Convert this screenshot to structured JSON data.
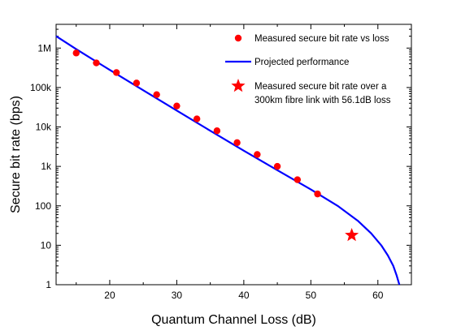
{
  "chart_data": {
    "type": "scatter",
    "xlabel": "Quantum Channel Loss (dB)",
    "ylabel": "Secure bit rate (bps)",
    "xlim": [
      12,
      65
    ],
    "ylim": [
      1,
      4000000
    ],
    "yscale": "log",
    "x_ticks": [
      20,
      30,
      40,
      50,
      60
    ],
    "y_ticks": [
      {
        "value": 1,
        "label": "1"
      },
      {
        "value": 10,
        "label": "10"
      },
      {
        "value": 100,
        "label": "100"
      },
      {
        "value": 1000,
        "label": "1k"
      },
      {
        "value": 10000,
        "label": "10k"
      },
      {
        "value": 100000,
        "label": "100k"
      },
      {
        "value": 1000000,
        "label": "1M"
      }
    ],
    "grid": false,
    "legend_position": "top-right",
    "series": [
      {
        "name": "Measured secure bit rate vs loss",
        "kind": "scatter",
        "marker": "circle",
        "color": "#ff0000",
        "x": [
          15,
          18,
          21,
          24,
          27,
          30,
          33,
          36,
          39,
          42,
          45,
          48,
          51
        ],
        "y": [
          750000,
          420000,
          240000,
          130000,
          66000,
          34000,
          16000,
          8000,
          4000,
          2000,
          1000,
          460,
          200
        ]
      },
      {
        "name": "Projected performance",
        "kind": "line",
        "color": "#0000ff",
        "x": [
          12,
          15,
          20,
          25,
          30,
          35,
          40,
          45,
          50,
          54,
          57,
          59,
          60.5,
          61.5,
          62.3,
          62.8,
          63.2
        ],
        "y": [
          2000000,
          940000,
          280000,
          85000,
          26000,
          8000,
          2500,
          800,
          260,
          100,
          42,
          20,
          10,
          5.5,
          3,
          1.7,
          1
        ]
      },
      {
        "name": "Measured secure bit rate over a 300km fibre link with 56.1dB loss",
        "kind": "scatter",
        "marker": "star",
        "color": "#ff0000",
        "x": [
          56.1
        ],
        "y": [
          18
        ]
      }
    ],
    "legend": [
      {
        "label_lines": [
          "Measured secure bit rate vs loss"
        ],
        "marker": "circle",
        "color": "#ff0000"
      },
      {
        "label_lines": [
          "Projected performance"
        ],
        "marker": "line",
        "color": "#0000ff"
      },
      {
        "label_lines": [
          "Measured secure bit rate over a",
          "300km fibre link with 56.1dB loss"
        ],
        "marker": "star",
        "color": "#ff0000"
      }
    ]
  }
}
